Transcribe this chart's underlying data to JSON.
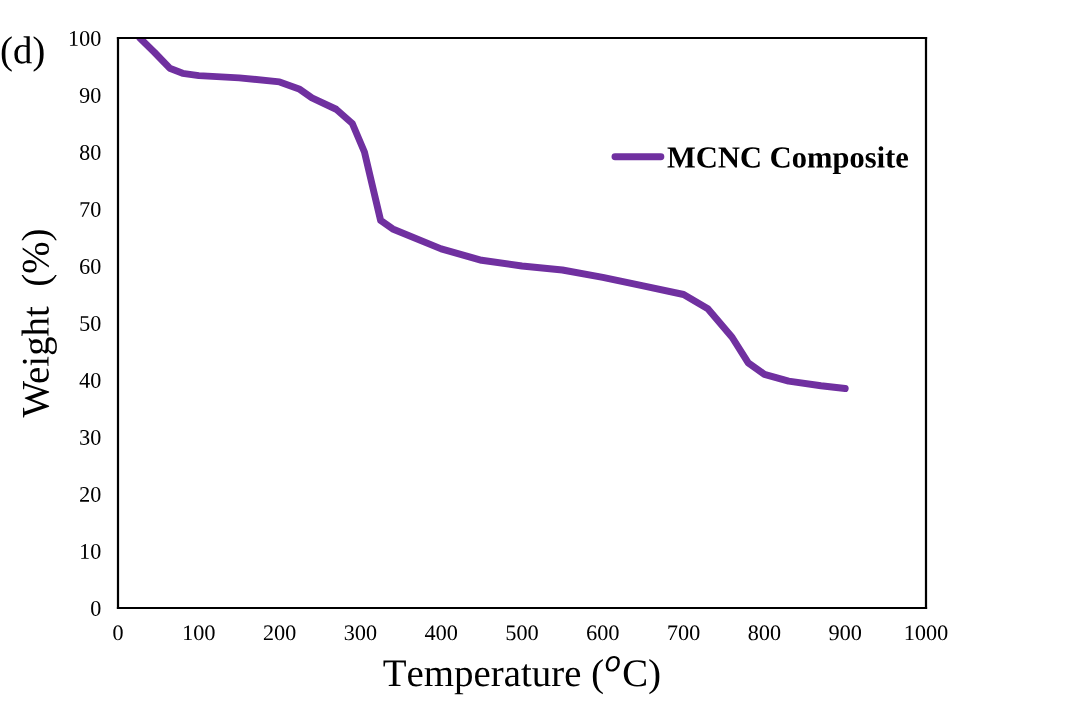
{
  "chart_data": {
    "type": "line",
    "xlabel": "Temperature ($^{o}$C)",
    "ylabel": "Weight  (%)",
    "annotations": [
      "(d)"
    ],
    "series": [
      {
        "name": "MCNC Composite",
        "color": "#7030a0",
        "x": [
          27,
          45,
          64,
          80,
          100,
          150,
          200,
          225,
          240,
          270,
          290,
          305,
          315,
          325,
          340,
          400,
          450,
          500,
          550,
          600,
          650,
          700,
          730,
          760,
          780,
          800,
          830,
          870,
          900
        ],
        "values": [
          100,
          97.5,
          94.7,
          93.8,
          93.4,
          93,
          92.3,
          91,
          89.5,
          87.5,
          85,
          80,
          74,
          68,
          66.5,
          63,
          61,
          60,
          59.3,
          58,
          56.5,
          55,
          52.5,
          47.5,
          43,
          41,
          39.8,
          39,
          38.5
        ]
      }
    ],
    "xlim": [
      0,
      1000
    ],
    "xticks": [
      0,
      100,
      200,
      300,
      400,
      500,
      600,
      700,
      800,
      900,
      1000
    ],
    "ylim": [
      0,
      100
    ],
    "yticks": [
      0,
      10,
      20,
      30,
      40,
      50,
      60,
      70,
      80,
      90,
      100
    ],
    "grid": false,
    "legend": "top right",
    "marker": "none",
    "line_style": "solid"
  }
}
